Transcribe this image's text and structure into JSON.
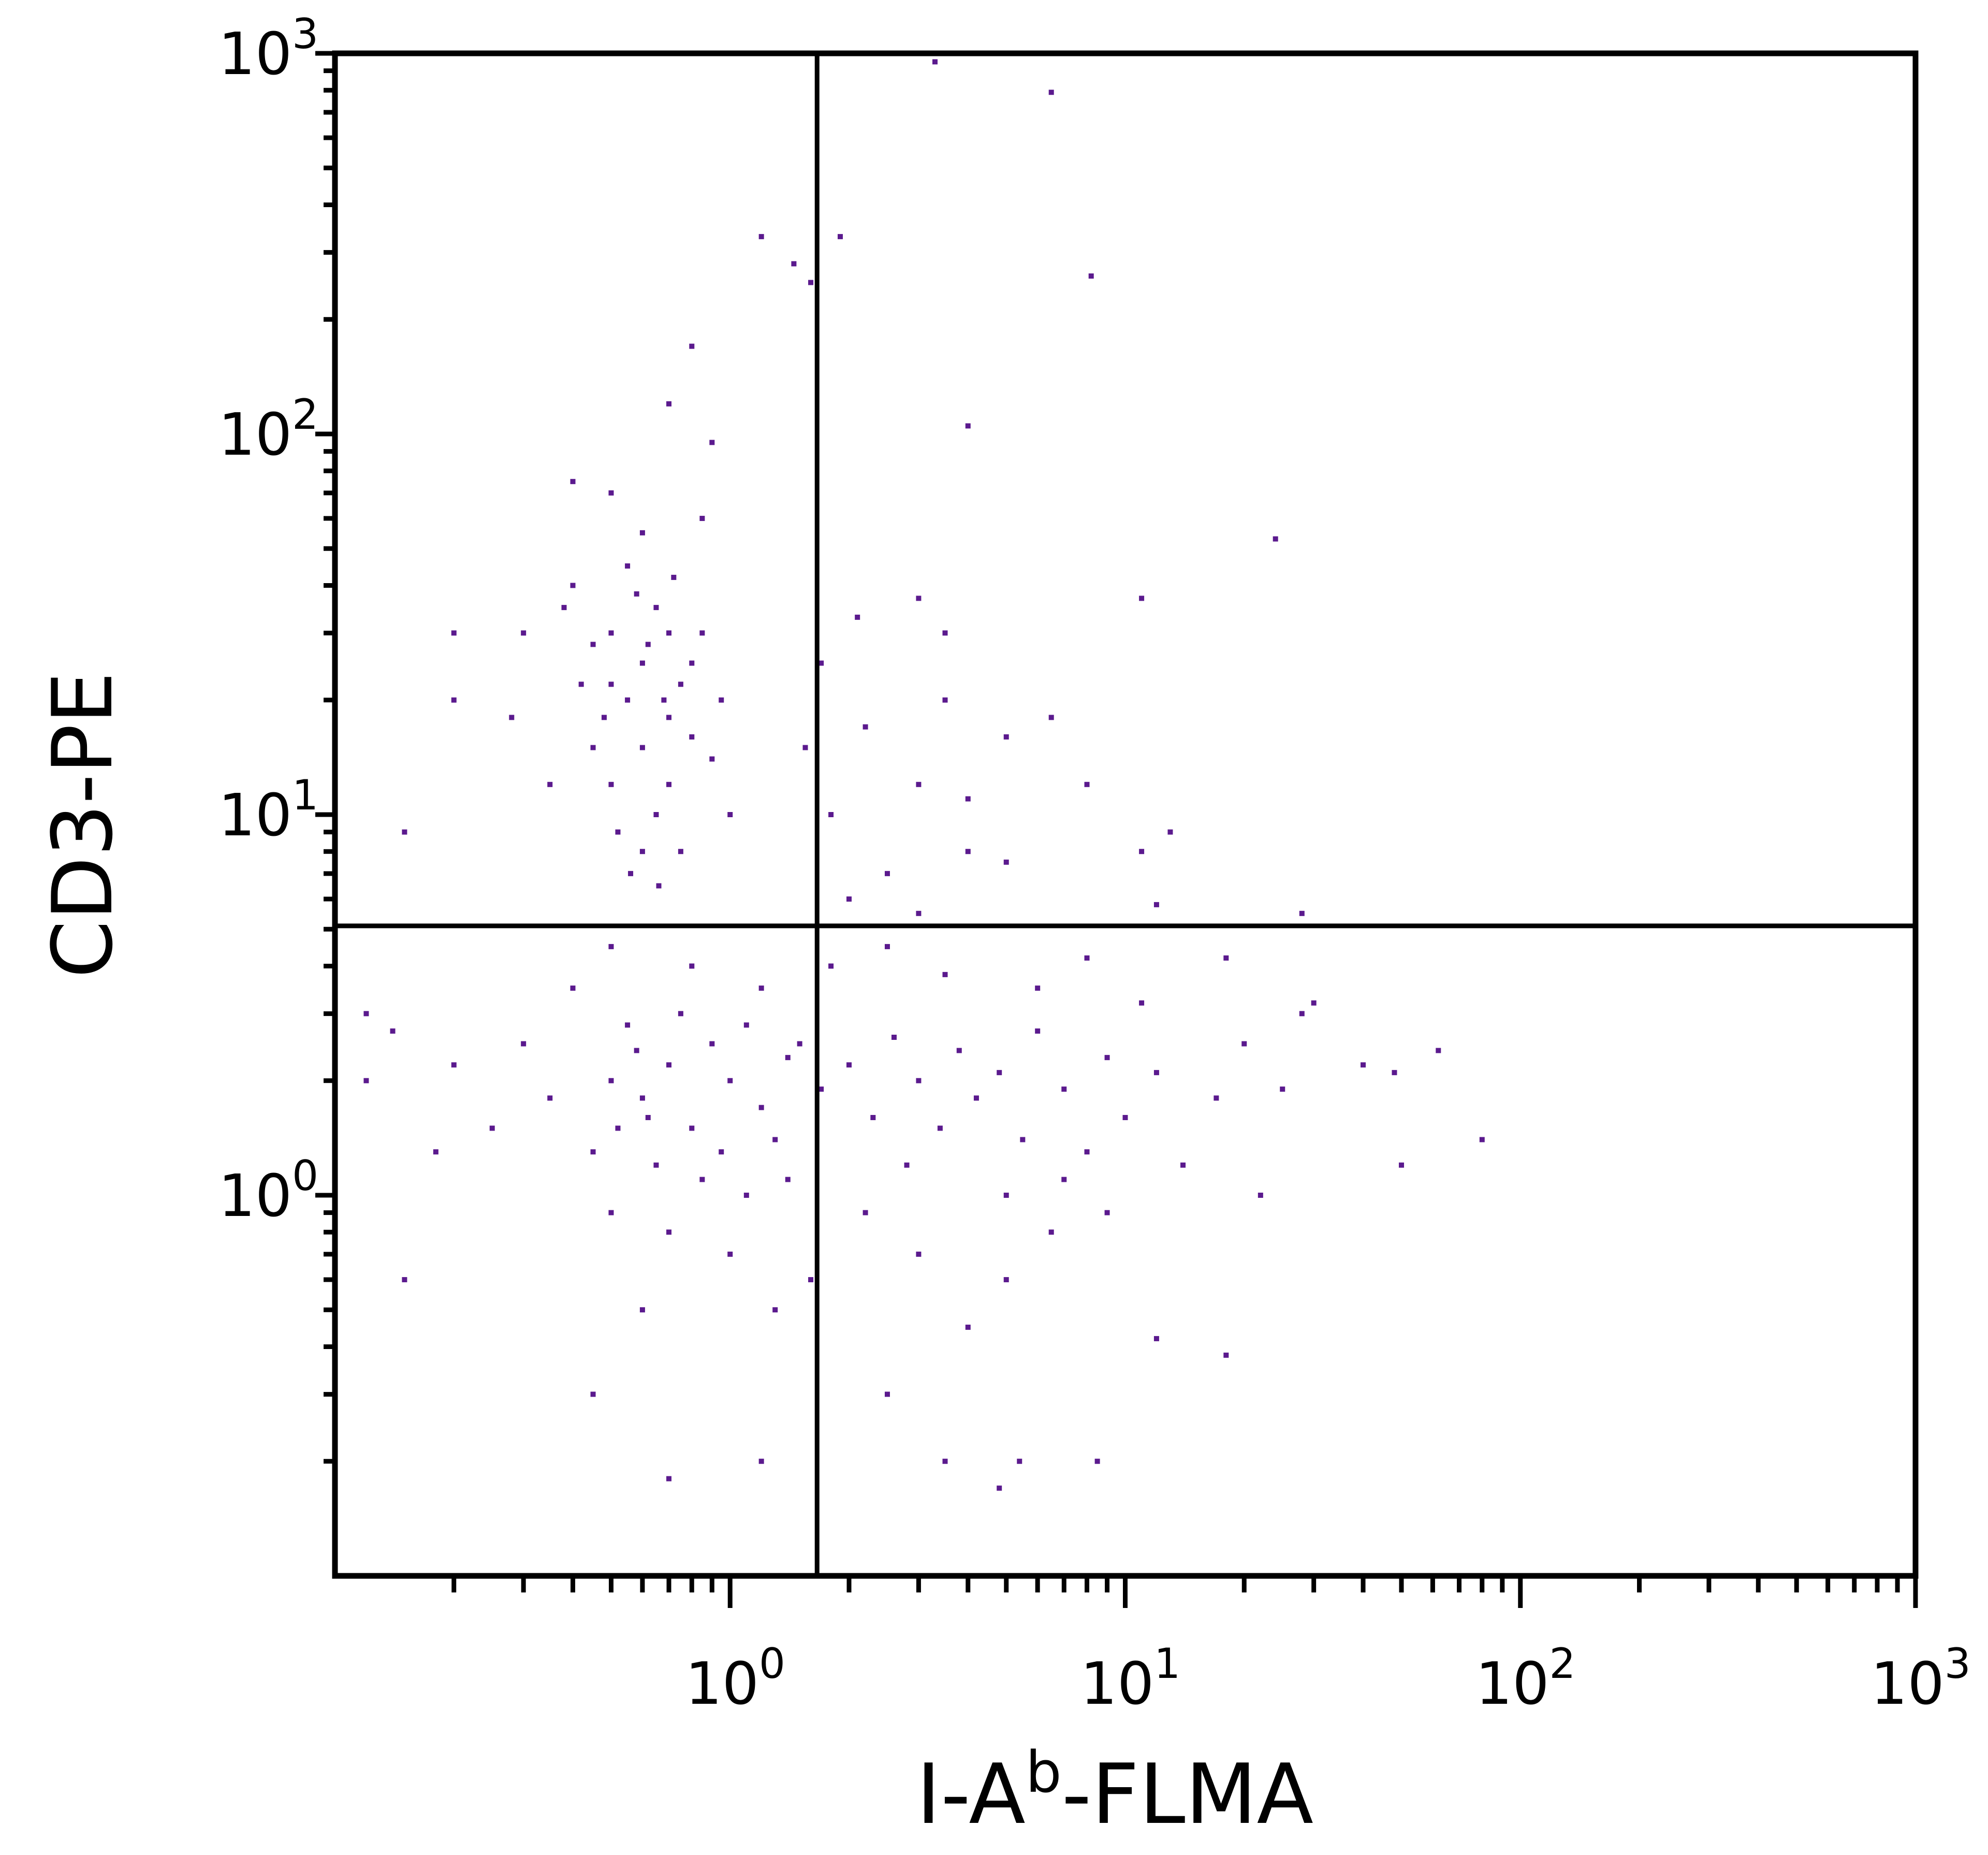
{
  "chart_data": {
    "type": "scatter",
    "xlabel": [
      "I-A",
      "b",
      "-FLMA"
    ],
    "ylabel": "CD3-PE",
    "xscale": "log",
    "yscale": "log",
    "xlim": [
      0.1,
      1000
    ],
    "ylim": [
      0.1,
      1000
    ],
    "xticks": [
      {
        "value": 1,
        "label": "10",
        "sup": "0"
      },
      {
        "value": 10,
        "label": "10",
        "sup": "1"
      },
      {
        "value": 100,
        "label": "10",
        "sup": "2"
      },
      {
        "value": 1000,
        "label": "10",
        "sup": "3"
      }
    ],
    "yticks": [
      {
        "value": 1,
        "label": "10",
        "sup": "0"
      },
      {
        "value": 10,
        "label": "10",
        "sup": "1"
      },
      {
        "value": 100,
        "label": "10",
        "sup": "2"
      },
      {
        "value": 1000,
        "label": "10",
        "sup": "3"
      }
    ],
    "xminorticks": [
      0.2,
      0.3,
      0.4,
      0.5,
      0.6,
      0.7,
      0.8,
      0.9,
      2,
      3,
      4,
      5,
      6,
      7,
      8,
      9,
      20,
      30,
      40,
      50,
      60,
      70,
      80,
      90,
      200,
      300,
      400,
      500,
      600,
      700,
      800,
      900
    ],
    "yminorticks": [
      0.2,
      0.3,
      0.4,
      0.5,
      0.6,
      0.7,
      0.8,
      0.9,
      2,
      3,
      4,
      5,
      6,
      7,
      8,
      9,
      20,
      30,
      40,
      50,
      60,
      70,
      80,
      90,
      200,
      300,
      400,
      500,
      600,
      700,
      800,
      900
    ],
    "quadrant_x": 1.66,
    "quadrant_y": 5.1,
    "grid": false,
    "series": [
      {
        "color": "#5b1a8e",
        "x": [
          0.5,
          0.6,
          0.55,
          0.7,
          0.65,
          0.45,
          0.75,
          0.6,
          0.5,
          0.7,
          0.8,
          0.4,
          0.55,
          0.65,
          0.45,
          0.75,
          0.6,
          0.85,
          0.9,
          0.5,
          0.7,
          0.58,
          0.48,
          0.68,
          0.62,
          0.52,
          0.42,
          0.38,
          0.8,
          0.72,
          0.66,
          0.56,
          0.95,
          0.35,
          0.3,
          0.28,
          0.2,
          0.2,
          0.15,
          1.0,
          0.85,
          0.6,
          0.4,
          0.5,
          0.9,
          0.7,
          0.8,
          1.2,
          1.45,
          1.6,
          3.3,
          6.5,
          8.2,
          4,
          1.9,
          0.5,
          0.6,
          0.7,
          0.8,
          0.9,
          1.0,
          1.2,
          1.4,
          0.45,
          0.55,
          0.65,
          0.75,
          0.85,
          1.1,
          1.3,
          1.5,
          1.7,
          2,
          2.3,
          2.6,
          3,
          3.4,
          3.8,
          4.2,
          4.8,
          5.5,
          6,
          7,
          8,
          9,
          10,
          12,
          14,
          17,
          20,
          25,
          0.35,
          0.3,
          0.4,
          0.25,
          0.2,
          0.18,
          0.5,
          0.7,
          1.0,
          1.3,
          1.6,
          2.2,
          3,
          4,
          5,
          6.5,
          9,
          12,
          18,
          0.6,
          0.45,
          0.7,
          1.2,
          2.5,
          3.5,
          4.8,
          5.4,
          8.5,
          0.15,
          0.12,
          0.12,
          0.14,
          0.5,
          0.8,
          1.2,
          1.8,
          2.5,
          3.5,
          6,
          8,
          11,
          18,
          28,
          30,
          40,
          50,
          62,
          80,
          48,
          22,
          0.62,
          0.52,
          0.58,
          0.95,
          1.1,
          1.4,
          2.8,
          5,
          7,
          2,
          2.5,
          3,
          1.8,
          2.2,
          3,
          3.5,
          4,
          5,
          6.5,
          8,
          11,
          13,
          11,
          24,
          3,
          3.5,
          2.1,
          12,
          28,
          4,
          5,
          1.7,
          1.55
        ],
        "values": [
          30,
          25,
          20,
          18,
          35,
          28,
          22,
          15,
          12,
          12,
          25,
          40,
          45,
          10,
          15,
          8,
          8,
          30,
          14,
          22,
          30,
          38,
          18,
          20,
          28,
          9,
          22,
          35,
          16,
          42,
          6.5,
          7,
          20,
          12,
          30,
          18,
          30,
          20,
          9,
          10,
          60,
          55,
          75,
          70,
          95,
          120,
          170,
          330,
          280,
          250,
          950,
          790,
          260,
          105,
          330,
          2,
          1.8,
          2.2,
          1.5,
          2.5,
          2,
          1.7,
          2.3,
          1.3,
          2.8,
          1.2,
          3,
          1.1,
          2.8,
          1.4,
          2.5,
          1.9,
          2.2,
          1.6,
          2.6,
          2,
          1.5,
          2.4,
          1.8,
          2.1,
          1.4,
          2.7,
          1.9,
          1.3,
          2.3,
          1.6,
          2.1,
          1.2,
          1.8,
          2.5,
          1.9,
          1.8,
          2.5,
          3.5,
          1.5,
          2.2,
          1.3,
          0.9,
          0.8,
          0.7,
          0.5,
          0.6,
          0.9,
          0.7,
          0.45,
          0.6,
          0.8,
          0.9,
          0.42,
          0.38,
          0.5,
          0.3,
          0.18,
          0.2,
          0.3,
          0.2,
          0.17,
          0.2,
          0.2,
          0.6,
          2,
          3,
          2.7,
          4.5,
          4,
          3.5,
          4,
          4.5,
          3.8,
          3.5,
          4.2,
          3.2,
          4.2,
          3,
          3.2,
          2.2,
          1.2,
          2.4,
          1.4,
          2.1,
          1,
          1.6,
          1.5,
          2.4,
          1.3,
          1,
          1.1,
          1.2,
          1,
          1.1,
          6,
          7,
          5.5,
          10,
          17,
          12,
          20,
          11,
          16,
          18,
          12,
          8,
          9,
          37,
          53,
          37,
          30,
          33,
          5.8,
          5.5,
          8,
          7.5,
          25,
          15
        ]
      }
    ]
  }
}
